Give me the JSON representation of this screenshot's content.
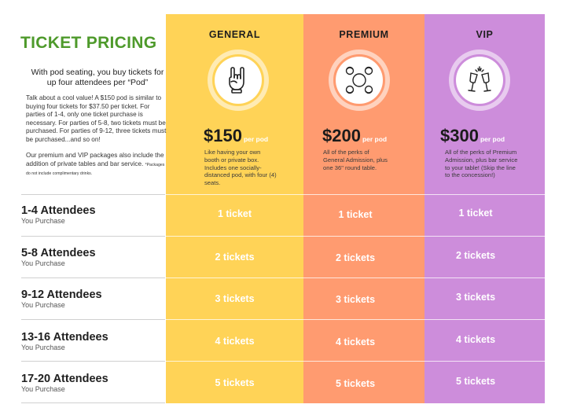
{
  "title": "TICKET PRICING",
  "intro": {
    "lead": "With pod seating, you buy tickets for up four attendees per “Pod”",
    "body1": "Talk about a cool value! A $150 pod is similar to buying four tickets for $37.50 per ticket. For parties of 1-4, only one ticket purchase is necessary. For parties of  5-8, two tickets must be purchased. For parties of 9-12, three tickets must be purchased...and so on!",
    "body2": "Our premium and VIP packages also include the addition of private tables and bar service.",
    "footnote": "*Packages do not include complimentary drinks."
  },
  "tiers": [
    {
      "name": "GENERAL",
      "icon": "rock-hand-icon",
      "price": "$150",
      "per": "per pod",
      "desc": "Like having your own booth or private box. Includes one socially-distanced pod, with four (4) seats.",
      "color": "#ffd357"
    },
    {
      "name": "PREMIUM",
      "icon": "table-with-chairs-icon",
      "price": "$200",
      "per": "per pod",
      "desc": "All of the perks of General Admission, plus one 36\" round table.",
      "color": "#ff9b70"
    },
    {
      "name": "VIP",
      "icon": "champagne-toast-icon",
      "price": "$300",
      "per": "per pod",
      "desc": "All of the perks of Premium Admission, plus bar service to your table! (Skip the line to the concession!)",
      "color": "#cd8ddb"
    }
  ],
  "rows": [
    {
      "attendees": "1-4 Attendees",
      "sub": "You Purchase",
      "tickets": "1 ticket"
    },
    {
      "attendees": "5-8 Attendees",
      "sub": "You Purchase",
      "tickets": "2 tickets"
    },
    {
      "attendees": "9-12 Attendees",
      "sub": "You Purchase",
      "tickets": "3 tickets"
    },
    {
      "attendees": "13-16 Attendees",
      "sub": "You Purchase",
      "tickets": "4 tickets"
    },
    {
      "attendees": "17-20 Attendees",
      "sub": "You Purchase",
      "tickets": "5 tickets"
    }
  ]
}
